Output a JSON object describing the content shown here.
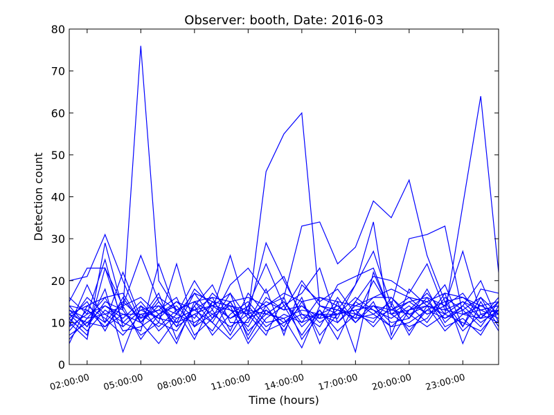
{
  "chart_data": {
    "type": "line",
    "title": "Observer: booth, Date: 2016-03",
    "xlabel": "Time (hours)",
    "ylabel": "Detection count",
    "xlim": [
      1,
      25
    ],
    "ylim": [
      0,
      80
    ],
    "x_tick_positions": [
      2,
      5,
      8,
      11,
      14,
      17,
      20,
      23
    ],
    "x_tick_labels": [
      "02:00:00",
      "05:00:00",
      "08:00:00",
      "11:00:00",
      "14:00:00",
      "17:00:00",
      "20:00:00",
      "23:00:00"
    ],
    "y_ticks": [
      0,
      10,
      20,
      30,
      40,
      50,
      60,
      70,
      80
    ],
    "grid": false,
    "line_color": "#0000ff",
    "x": [
      1,
      2,
      3,
      4,
      5,
      6,
      7,
      8,
      9,
      10,
      11,
      12,
      13,
      14,
      15,
      16,
      17,
      18,
      19,
      20,
      21,
      22,
      23,
      24,
      25
    ],
    "series": [
      {
        "values": [
          13,
          9,
          15,
          13,
          76,
          20,
          13,
          15,
          12,
          14,
          13,
          12,
          11,
          13,
          12,
          12,
          13,
          14,
          13,
          12,
          14,
          13,
          12,
          13,
          14
        ]
      },
      {
        "values": [
          12,
          10,
          14,
          12,
          12,
          13,
          11,
          13,
          14,
          13,
          12,
          46,
          55,
          60,
          14,
          12,
          13,
          14,
          12,
          13,
          14,
          12,
          38,
          64,
          22
        ]
      },
      {
        "values": [
          20,
          21,
          31,
          20,
          10,
          14,
          12,
          17,
          15,
          14,
          12,
          14,
          16,
          33,
          34,
          24,
          28,
          39,
          35,
          44,
          26,
          15,
          16,
          13,
          14
        ]
      },
      {
        "values": [
          15,
          23,
          23,
          14,
          26,
          15,
          10,
          18,
          14,
          17,
          11,
          15,
          13,
          20,
          14,
          13,
          19,
          27,
          14,
          30,
          31,
          33,
          12,
          14,
          15
        ]
      },
      {
        "values": [
          11,
          7,
          23,
          10,
          8,
          24,
          12,
          20,
          13,
          26,
          12,
          29,
          20,
          12,
          11,
          19,
          21,
          23,
          12,
          15,
          16,
          14,
          27,
          12,
          13
        ]
      },
      {
        "values": [
          10,
          6,
          29,
          13,
          7,
          10,
          24,
          9,
          15,
          11,
          14,
          24,
          14,
          17,
          23,
          10,
          15,
          21,
          20,
          17,
          24,
          13,
          15,
          11,
          12
        ]
      },
      {
        "values": [
          16,
          12,
          25,
          9,
          13,
          14,
          9,
          17,
          11,
          19,
          23,
          17,
          21,
          11,
          12,
          11,
          19,
          34,
          7,
          18,
          14,
          19,
          9,
          18,
          17
        ]
      },
      {
        "values": [
          9,
          19,
          10,
          22,
          11,
          17,
          6,
          14,
          19,
          10,
          10,
          18,
          7,
          19,
          15,
          18,
          12,
          16,
          16,
          11,
          18,
          10,
          14,
          20,
          10
        ]
      },
      {
        "values": [
          8,
          13,
          9,
          14,
          16,
          12,
          15,
          11,
          17,
          13,
          9,
          16,
          13,
          14,
          10,
          13,
          11,
          20,
          13,
          16,
          12,
          14,
          17,
          11,
          16
        ]
      },
      {
        "values": [
          14,
          9,
          18,
          3,
          14,
          11,
          15,
          13,
          16,
          8,
          17,
          12,
          15,
          10,
          16,
          14,
          10,
          15,
          6,
          13,
          15,
          11,
          13,
          16,
          9
        ]
      },
      {
        "values": [
          6,
          11,
          16,
          8,
          9,
          12,
          5,
          15,
          10,
          17,
          6,
          13,
          9,
          16,
          5,
          15,
          3,
          22,
          12,
          9,
          11,
          17,
          5,
          15,
          8
        ]
      },
      {
        "values": [
          12,
          8,
          13,
          10,
          14,
          8,
          12,
          10,
          13,
          7,
          14,
          9,
          12,
          10,
          12,
          14,
          11,
          12,
          15,
          7,
          14,
          8,
          12,
          11,
          15
        ]
      },
      {
        "values": [
          5,
          14,
          11,
          7,
          12,
          9,
          13,
          6,
          15,
          14,
          5,
          11,
          14,
          7,
          13,
          6,
          15,
          12,
          9,
          13,
          17,
          12,
          10,
          8,
          13
        ]
      },
      {
        "values": [
          11,
          15,
          8,
          16,
          10,
          15,
          9,
          12,
          8,
          15,
          7,
          14,
          8,
          15,
          7,
          12,
          13,
          9,
          14,
          8,
          13,
          15,
          9,
          16,
          12
        ]
      },
      {
        "values": [
          13,
          11,
          12,
          14,
          6,
          12,
          14,
          9,
          12,
          9,
          12,
          7,
          16,
          6,
          12,
          10,
          14,
          13,
          11,
          14,
          10,
          16,
          13,
          9,
          15
        ]
      },
      {
        "values": [
          9,
          12,
          14,
          11,
          15,
          10,
          8,
          14,
          7,
          12,
          15,
          10,
          11,
          4,
          14,
          13,
          12,
          10,
          16,
          12,
          9,
          12,
          15,
          13,
          11
        ]
      },
      {
        "values": [
          7,
          10,
          9,
          12,
          10,
          5,
          11,
          13,
          10,
          6,
          11,
          13,
          10,
          12,
          9,
          16,
          10,
          14,
          10,
          11,
          16,
          9,
          11,
          7,
          14
        ]
      },
      {
        "values": [
          14,
          13,
          10,
          15,
          11,
          13,
          16,
          7,
          11,
          15,
          8,
          12,
          15,
          9,
          13,
          8,
          12,
          11,
          13,
          15,
          12,
          14,
          8,
          12,
          10
        ]
      },
      {
        "values": [
          10,
          16,
          12,
          9,
          13,
          11,
          10,
          12,
          14,
          11,
          13,
          8,
          10,
          14,
          11,
          12,
          16,
          13,
          9,
          10,
          13,
          11,
          14,
          10,
          13
        ]
      },
      {
        "values": [
          12,
          14,
          16,
          17,
          10,
          16,
          13,
          15,
          16,
          15,
          16,
          14,
          17,
          15,
          16,
          15,
          14,
          16,
          18,
          16,
          15,
          17,
          16,
          14,
          12
        ]
      }
    ]
  }
}
